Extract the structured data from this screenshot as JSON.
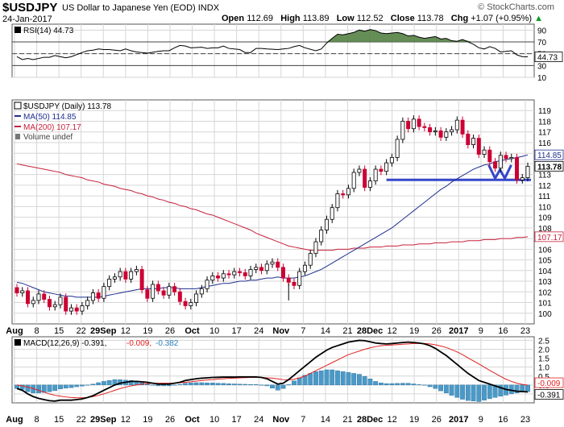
{
  "header": {
    "symbol": "$USDJPY",
    "description": "US Dollar to Japanese Yen (EOD) INDX",
    "date": "24-Jan-2017",
    "brand": "© StockCharts.com",
    "ohlc": [
      {
        "label": "Open",
        "value": "112.69"
      },
      {
        "label": "High",
        "value": "113.89"
      },
      {
        "label": "Low",
        "value": "112.52"
      },
      {
        "label": "Close",
        "value": "113.78"
      },
      {
        "label": "Chg",
        "value": "+1.07 (+0.95%)"
      }
    ],
    "chg_arrow": "▲"
  },
  "chart_data": [
    {
      "type": "line",
      "panel": "rsi",
      "legend": "RSI(14) 44.73",
      "last_value_label": "44.73",
      "ylim": [
        10,
        100
      ],
      "ticks": [
        10,
        30,
        50,
        70,
        90
      ],
      "reference_lines": [
        30,
        50,
        70
      ],
      "values": [
        45,
        40,
        42,
        40,
        44,
        44,
        47,
        45,
        43,
        45,
        52,
        55,
        56,
        58,
        57,
        57,
        55,
        58,
        55,
        53,
        52,
        51,
        54,
        55,
        55,
        60,
        64,
        63,
        60,
        61,
        59,
        60,
        60,
        63,
        59,
        57,
        52,
        52,
        59,
        59,
        58,
        57,
        58,
        59,
        62,
        64,
        60,
        55,
        58,
        68,
        76,
        83,
        82,
        86,
        90,
        88,
        91,
        89,
        85,
        84,
        86,
        84,
        80,
        81,
        78,
        76,
        79,
        75,
        76,
        72,
        71,
        74,
        66,
        60,
        58,
        62,
        59,
        53,
        55,
        48,
        45,
        44.73
      ]
    },
    {
      "type": "candlestick",
      "panel": "price",
      "legend": [
        "$USDJPY (Daily) 113.78",
        "MA(50) 114.85",
        "MA(200) 107.17",
        "Volume undef"
      ],
      "price_labels": [
        "114.85",
        "113.78",
        "107.17"
      ],
      "ylim": [
        99,
        120
      ],
      "ticks": [
        100,
        101,
        102,
        103,
        104,
        105,
        106,
        107,
        108,
        109,
        110,
        111,
        112,
        113,
        114,
        115,
        116,
        117,
        118,
        119
      ],
      "x_ticks": [
        "Aug",
        "8",
        "15",
        "22",
        "29Sep",
        "12",
        "19",
        "26",
        "Oct",
        "10",
        "17",
        "24",
        "Nov",
        "7",
        "14",
        "21",
        "28Dec",
        "12",
        "19",
        "26",
        "2017",
        "9",
        "16",
        "23"
      ],
      "close": [
        101.9,
        102.1,
        100.9,
        101.2,
        101.8,
        101.3,
        100.6,
        100.8,
        101.5,
        100.2,
        100.5,
        100.2,
        100.7,
        101.2,
        101.9,
        101.4,
        102.5,
        103.2,
        103.4,
        103.9,
        103.2,
        103.9,
        104.1,
        102.2,
        101.4,
        102.7,
        102.1,
        101.7,
        102.5,
        102.0,
        101.1,
        100.7,
        101.0,
        101.8,
        102.3,
        103.1,
        103.5,
        103.3,
        103.7,
        103.6,
        103.9,
        103.8,
        103.5,
        104.1,
        104.3,
        104.0,
        104.6,
        104.8,
        104.3,
        103.3,
        102.9,
        102.6,
        103.9,
        104.5,
        105.6,
        106.7,
        107.8,
        108.8,
        109.9,
        111.2,
        111.1,
        111.7,
        113.2,
        113.5,
        111.8,
        112.4,
        113.5,
        113.3,
        114.1,
        114.6,
        116.3,
        118.0,
        117.3,
        118.2,
        117.5,
        117.4,
        117.0,
        117.1,
        116.5,
        117.0,
        117.2,
        118.1,
        116.8,
        115.8,
        116.4,
        114.9,
        115.3,
        114.2,
        113.6,
        114.8,
        114.5,
        114.6,
        112.5,
        112.7,
        113.78
      ],
      "ma50": [
        102.9,
        102.8,
        102.6,
        102.4,
        102.2,
        102.0,
        101.9,
        101.8,
        101.7,
        101.6,
        101.6,
        101.5,
        101.5,
        101.5,
        101.5,
        101.5,
        101.6,
        101.7,
        101.8,
        101.9,
        102.0,
        102.1,
        102.2,
        102.3,
        102.3,
        102.3,
        102.3,
        102.4,
        102.4,
        102.4,
        102.3,
        102.3,
        102.3,
        102.3,
        102.4,
        102.5,
        102.6,
        102.7,
        102.8,
        102.8,
        102.9,
        103.0,
        103.0,
        103.1,
        103.1,
        103.2,
        103.3,
        103.3,
        103.4,
        103.3,
        103.3,
        103.3,
        103.4,
        103.5,
        103.7,
        103.9,
        104.1,
        104.4,
        104.7,
        105.0,
        105.3,
        105.6,
        105.9,
        106.2,
        106.5,
        106.8,
        107.1,
        107.4,
        107.7,
        108.0,
        108.4,
        108.8,
        109.2,
        109.6,
        110.0,
        110.4,
        110.8,
        111.2,
        111.6,
        111.9,
        112.3,
        112.6,
        112.9,
        113.2,
        113.5,
        113.7,
        113.9,
        114.0,
        114.2,
        114.3,
        114.4,
        114.5,
        114.6,
        114.7,
        114.85
      ],
      "ma200": [
        114.0,
        113.9,
        113.8,
        113.7,
        113.6,
        113.5,
        113.4,
        113.3,
        113.2,
        113.0,
        112.9,
        112.8,
        112.7,
        112.5,
        112.4,
        112.3,
        112.1,
        112.0,
        111.9,
        111.7,
        111.6,
        111.5,
        111.3,
        111.2,
        111.0,
        110.9,
        110.7,
        110.6,
        110.4,
        110.3,
        110.1,
        110.0,
        109.8,
        109.7,
        109.5,
        109.3,
        109.2,
        109.0,
        108.8,
        108.6,
        108.4,
        108.2,
        108.0,
        107.8,
        107.5,
        107.3,
        107.1,
        106.9,
        106.7,
        106.5,
        106.3,
        106.2,
        106.1,
        106.0,
        105.9,
        105.9,
        105.9,
        105.9,
        105.9,
        106.0,
        106.0,
        106.0,
        106.1,
        106.1,
        106.1,
        106.2,
        106.2,
        106.2,
        106.3,
        106.3,
        106.3,
        106.4,
        106.4,
        106.4,
        106.5,
        106.5,
        106.5,
        106.6,
        106.6,
        106.6,
        106.7,
        106.7,
        106.7,
        106.8,
        106.8,
        106.8,
        106.9,
        106.9,
        106.9,
        107.0,
        107.0,
        107.0,
        107.1,
        107.1,
        107.17
      ]
    },
    {
      "type": "line",
      "panel": "macd",
      "legend_prefix": "MACD(12,26,9)",
      "legend_values": [
        "-0.391",
        "-0.009",
        "-0.382"
      ],
      "value_labels": [
        "-0.009",
        "-0.391"
      ],
      "ylim": [
        -1.0,
        2.7
      ],
      "ticks": [
        "2.5",
        "2.0",
        "1.5",
        "1.0",
        "0.5",
        "0.0",
        "-0.5"
      ],
      "macd": [
        -0.2,
        -0.3,
        -0.5,
        -0.65,
        -0.75,
        -0.82,
        -0.88,
        -0.9,
        -0.85,
        -0.85,
        -0.85,
        -0.82,
        -0.78,
        -0.7,
        -0.6,
        -0.45,
        -0.3,
        -0.15,
        0.0,
        0.1,
        0.15,
        0.2,
        0.2,
        0.18,
        0.15,
        0.1,
        0.05,
        0.05,
        0.05,
        0.1,
        0.15,
        0.25,
        0.3,
        0.35,
        0.38,
        0.4,
        0.42,
        0.43,
        0.44,
        0.44,
        0.44,
        0.45,
        0.45,
        0.45,
        0.45,
        0.42,
        0.35,
        0.2,
        0.05,
        0.1,
        0.3,
        0.55,
        0.8,
        1.05,
        1.3,
        1.55,
        1.75,
        1.95,
        2.1,
        2.2,
        2.3,
        2.4,
        2.45,
        2.5,
        2.48,
        2.42,
        2.35,
        2.32,
        2.3,
        2.32,
        2.35,
        2.38,
        2.4,
        2.38,
        2.35,
        2.3,
        2.2,
        2.05,
        1.85,
        1.65,
        1.4,
        1.15,
        0.9,
        0.65,
        0.45,
        0.25,
        0.15,
        0.05,
        -0.05,
        -0.15,
        -0.25,
        -0.3,
        -0.35,
        -0.37,
        -0.391
      ],
      "signal": [
        0.0,
        -0.05,
        -0.12,
        -0.2,
        -0.3,
        -0.4,
        -0.5,
        -0.58,
        -0.63,
        -0.67,
        -0.7,
        -0.72,
        -0.72,
        -0.7,
        -0.65,
        -0.58,
        -0.5,
        -0.4,
        -0.3,
        -0.2,
        -0.12,
        -0.05,
        0.0,
        0.05,
        0.08,
        0.1,
        0.1,
        0.1,
        0.1,
        0.1,
        0.12,
        0.15,
        0.18,
        0.22,
        0.25,
        0.28,
        0.3,
        0.33,
        0.35,
        0.37,
        0.38,
        0.4,
        0.41,
        0.42,
        0.42,
        0.42,
        0.4,
        0.38,
        0.34,
        0.3,
        0.28,
        0.32,
        0.4,
        0.5,
        0.65,
        0.8,
        0.95,
        1.1,
        1.25,
        1.4,
        1.55,
        1.7,
        1.8,
        1.9,
        2.0,
        2.08,
        2.15,
        2.2,
        2.22,
        2.24,
        2.26,
        2.28,
        2.3,
        2.32,
        2.33,
        2.32,
        2.3,
        2.25,
        2.18,
        2.1,
        1.98,
        1.85,
        1.7,
        1.52,
        1.35,
        1.18,
        1.0,
        0.82,
        0.65,
        0.48,
        0.32,
        0.2,
        0.1,
        0.03,
        -0.009
      ],
      "histogram": [
        -0.2,
        -0.25,
        -0.38,
        -0.45,
        -0.45,
        -0.42,
        -0.38,
        -0.32,
        -0.22,
        -0.18,
        -0.15,
        -0.1,
        -0.06,
        0.0,
        0.05,
        0.13,
        0.2,
        0.25,
        0.3,
        0.3,
        0.27,
        0.25,
        0.2,
        0.13,
        0.07,
        0.0,
        -0.05,
        -0.05,
        -0.05,
        0.0,
        0.03,
        0.1,
        0.12,
        0.13,
        0.13,
        0.12,
        0.12,
        0.1,
        0.09,
        0.07,
        0.06,
        0.05,
        0.04,
        0.03,
        0.03,
        0.0,
        -0.05,
        -0.18,
        -0.29,
        -0.2,
        0.02,
        0.23,
        0.4,
        0.55,
        0.65,
        0.75,
        0.8,
        0.85,
        0.85,
        0.8,
        0.75,
        0.7,
        0.65,
        0.6,
        0.48,
        0.34,
        0.2,
        0.12,
        0.08,
        0.08,
        0.09,
        0.1,
        0.1,
        0.06,
        0.02,
        -0.02,
        -0.1,
        -0.2,
        -0.33,
        -0.45,
        -0.58,
        -0.7,
        -0.8,
        -0.87,
        -0.9,
        -0.93,
        -0.85,
        -0.77,
        -0.7,
        -0.63,
        -0.57,
        -0.5,
        -0.45,
        -0.4,
        -0.382
      ],
      "x_ticks": [
        "Aug",
        "8",
        "15",
        "22",
        "29Sep",
        "12",
        "19",
        "26",
        "Oct",
        "10",
        "17",
        "24",
        "Nov",
        "7",
        "14",
        "21",
        "28Dec",
        "12",
        "19",
        "26",
        "2017",
        "9",
        "16",
        "23"
      ]
    }
  ],
  "colors": {
    "up": "#000000",
    "down": "#cc0033",
    "ma50": "#1f2f8f",
    "ma200": "#c8203a",
    "support": "#3547c8",
    "rsi_fill_high": "#4a7a3a",
    "macd_hist": "#4a9ac8",
    "macd_signal": "#e02020",
    "macd_line": "#000000",
    "grid": "#d6d6d6"
  }
}
